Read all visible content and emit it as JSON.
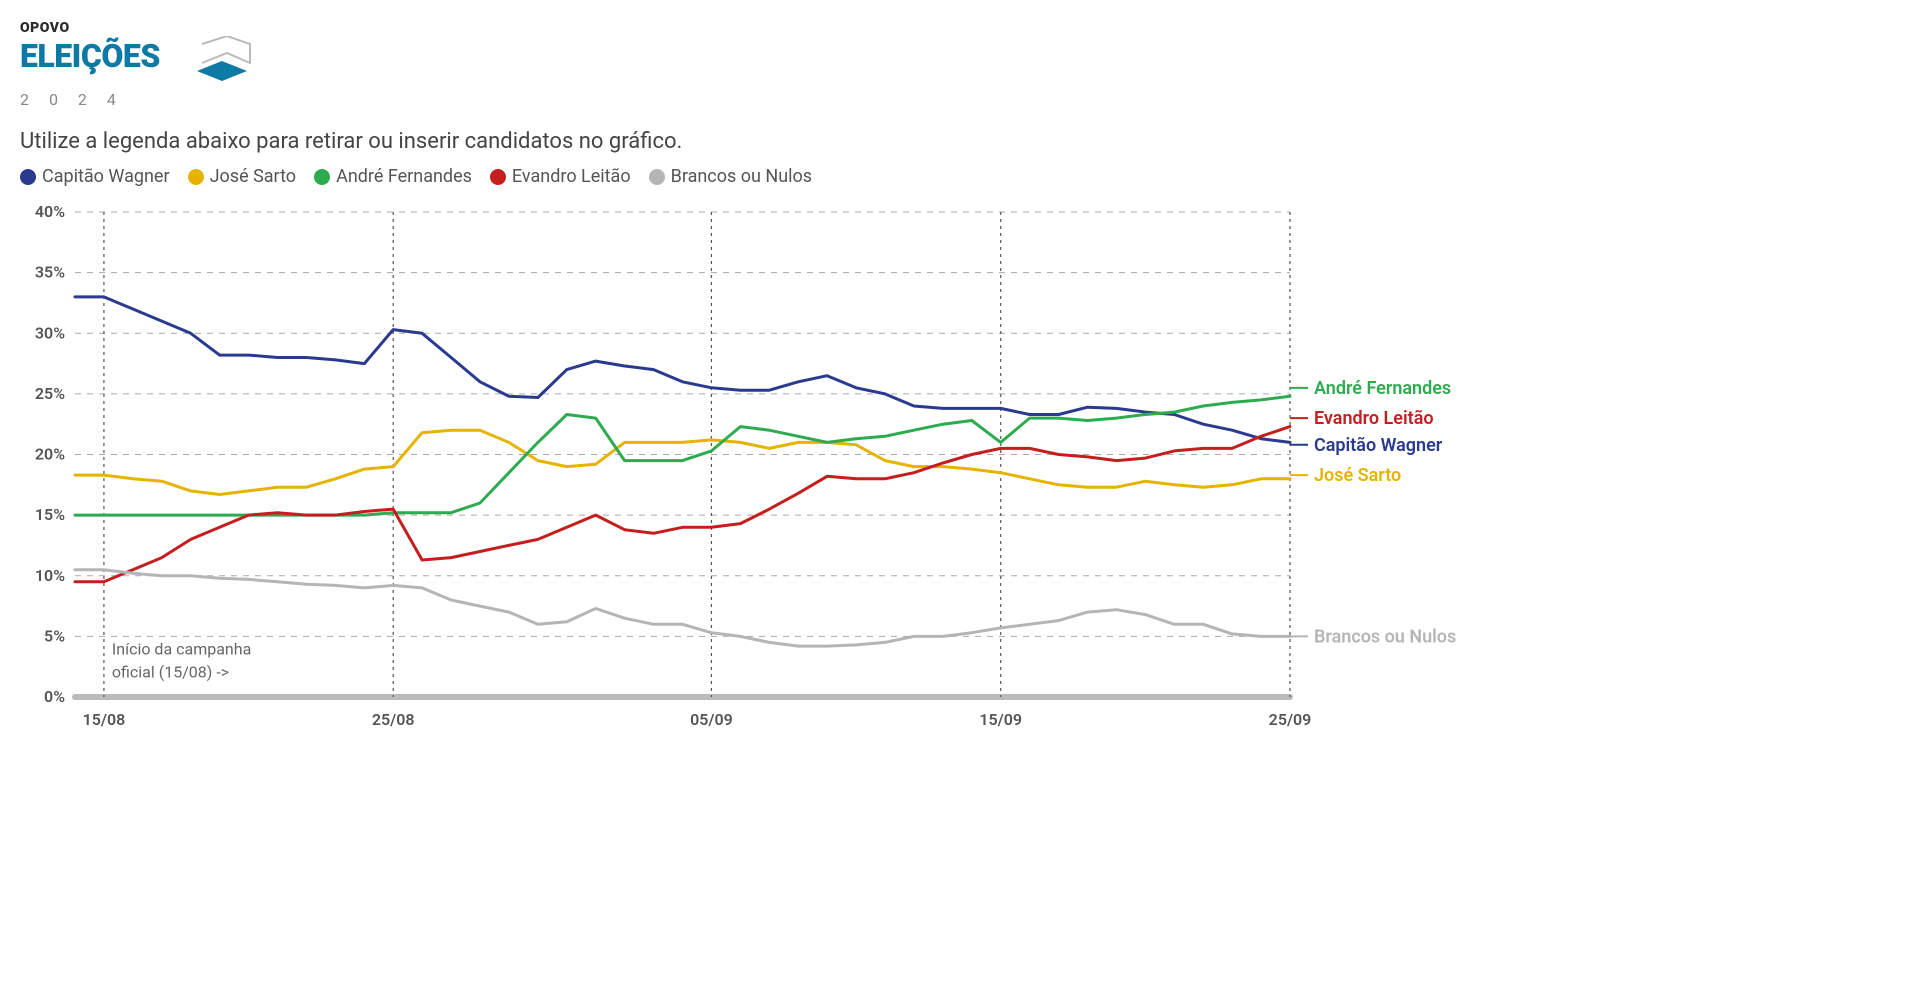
{
  "logo": {
    "top": "OPOVO",
    "main": "ELEIÇÕES",
    "year": "2 0 2 4",
    "accent_color": "#0d7aa5"
  },
  "instruction": "Utilize a legenda abaixo para retirar ou inserir candidatos no gráfico.",
  "chart": {
    "type": "line",
    "background_color": "#ffffff",
    "grid_color": "#aaaaaa",
    "axis_color": "#bbbbbb",
    "ylim": [
      0,
      40
    ],
    "ytick_step": 5,
    "ytick_suffix": "%",
    "x_ticks": [
      "15/08",
      "25/08",
      "05/09",
      "15/09",
      "25/09"
    ],
    "x_tick_positions": [
      1,
      11,
      22,
      32,
      42
    ],
    "x_count": 43,
    "line_width": 3,
    "annotation": {
      "text_line1": "Início da campanha",
      "text_line2": "oficial (15/08) ->",
      "x_index": 1
    },
    "series": [
      {
        "name": "Capitão Wagner",
        "color": "#2a3a8f",
        "values": [
          33,
          33,
          32,
          31,
          30,
          28.2,
          28.2,
          28,
          28,
          27.8,
          27.5,
          30.3,
          30,
          28,
          26,
          24.8,
          24.7,
          27,
          27.7,
          27.3,
          27,
          26,
          25.5,
          25.3,
          25.3,
          26,
          26.5,
          25.5,
          25,
          24,
          23.8,
          23.8,
          23.8,
          23.3,
          23.3,
          23.9,
          23.8,
          23.5,
          23.3,
          22.5,
          22,
          21.3,
          21.0
        ]
      },
      {
        "name": "José Sarto",
        "color": "#e6b400",
        "values": [
          18.3,
          18.3,
          18,
          17.8,
          17,
          16.7,
          17,
          17.3,
          17.3,
          18,
          18.8,
          19,
          21.8,
          22,
          22,
          21,
          19.5,
          19,
          19.2,
          21,
          21,
          21,
          21.2,
          21,
          20.5,
          21,
          21,
          20.8,
          19.5,
          19,
          19,
          18.8,
          18.5,
          18,
          17.5,
          17.3,
          17.3,
          17.8,
          17.5,
          17.3,
          17.5,
          18,
          18
        ]
      },
      {
        "name": "André Fernandes",
        "color": "#2eab4f",
        "values": [
          15,
          15,
          15,
          15,
          15,
          15,
          15,
          15,
          15,
          15,
          15,
          15.2,
          15.2,
          15.2,
          16,
          18.5,
          21,
          23.3,
          23,
          19.5,
          19.5,
          19.5,
          20.3,
          22.3,
          22,
          21.5,
          21,
          21.3,
          21.5,
          22,
          22.5,
          22.8,
          21,
          23,
          23,
          22.8,
          23,
          23.3,
          23.5,
          24,
          24.3,
          24.5,
          24.8
        ]
      },
      {
        "name": "Evandro Leitão",
        "color": "#c41e1e",
        "values": [
          9.5,
          9.5,
          10.5,
          11.5,
          13,
          14,
          15,
          15.2,
          15,
          15,
          15.3,
          15.5,
          11.3,
          11.5,
          12,
          12.5,
          13,
          14,
          15,
          13.8,
          13.5,
          14,
          14,
          14.3,
          15.5,
          16.8,
          18.2,
          18,
          18,
          18.5,
          19.3,
          20,
          20.5,
          20.5,
          20,
          19.8,
          19.5,
          19.7,
          20.3,
          20.5,
          20.5,
          21.5,
          22.3
        ]
      },
      {
        "name": "Brancos ou Nulos",
        "color": "#b5b5b5",
        "values": [
          10.5,
          10.5,
          10.2,
          10,
          10,
          9.8,
          9.7,
          9.5,
          9.3,
          9.2,
          9,
          9.2,
          9,
          8,
          7.5,
          7,
          6,
          6.2,
          7.3,
          6.5,
          6,
          6,
          5.3,
          5,
          4.5,
          4.2,
          4.2,
          4.3,
          4.5,
          5,
          5,
          5.3,
          5.7,
          6,
          6.3,
          7,
          7.2,
          6.8,
          6,
          6,
          5.2,
          5,
          5
        ]
      }
    ],
    "end_labels": [
      {
        "name": "André Fernandes",
        "color": "#2eab4f",
        "y_value": 25.5
      },
      {
        "name": "Evandro Leitão",
        "color": "#c41e1e",
        "y_value": 23
      },
      {
        "name": "Capitão Wagner",
        "color": "#2a3a8f",
        "y_value": 20.8
      },
      {
        "name": "José Sarto",
        "color": "#e6b400",
        "y_value": 18.3
      },
      {
        "name": "Brancos ou Nulos",
        "color": "#b5b5b5",
        "y_value": 5
      }
    ]
  }
}
